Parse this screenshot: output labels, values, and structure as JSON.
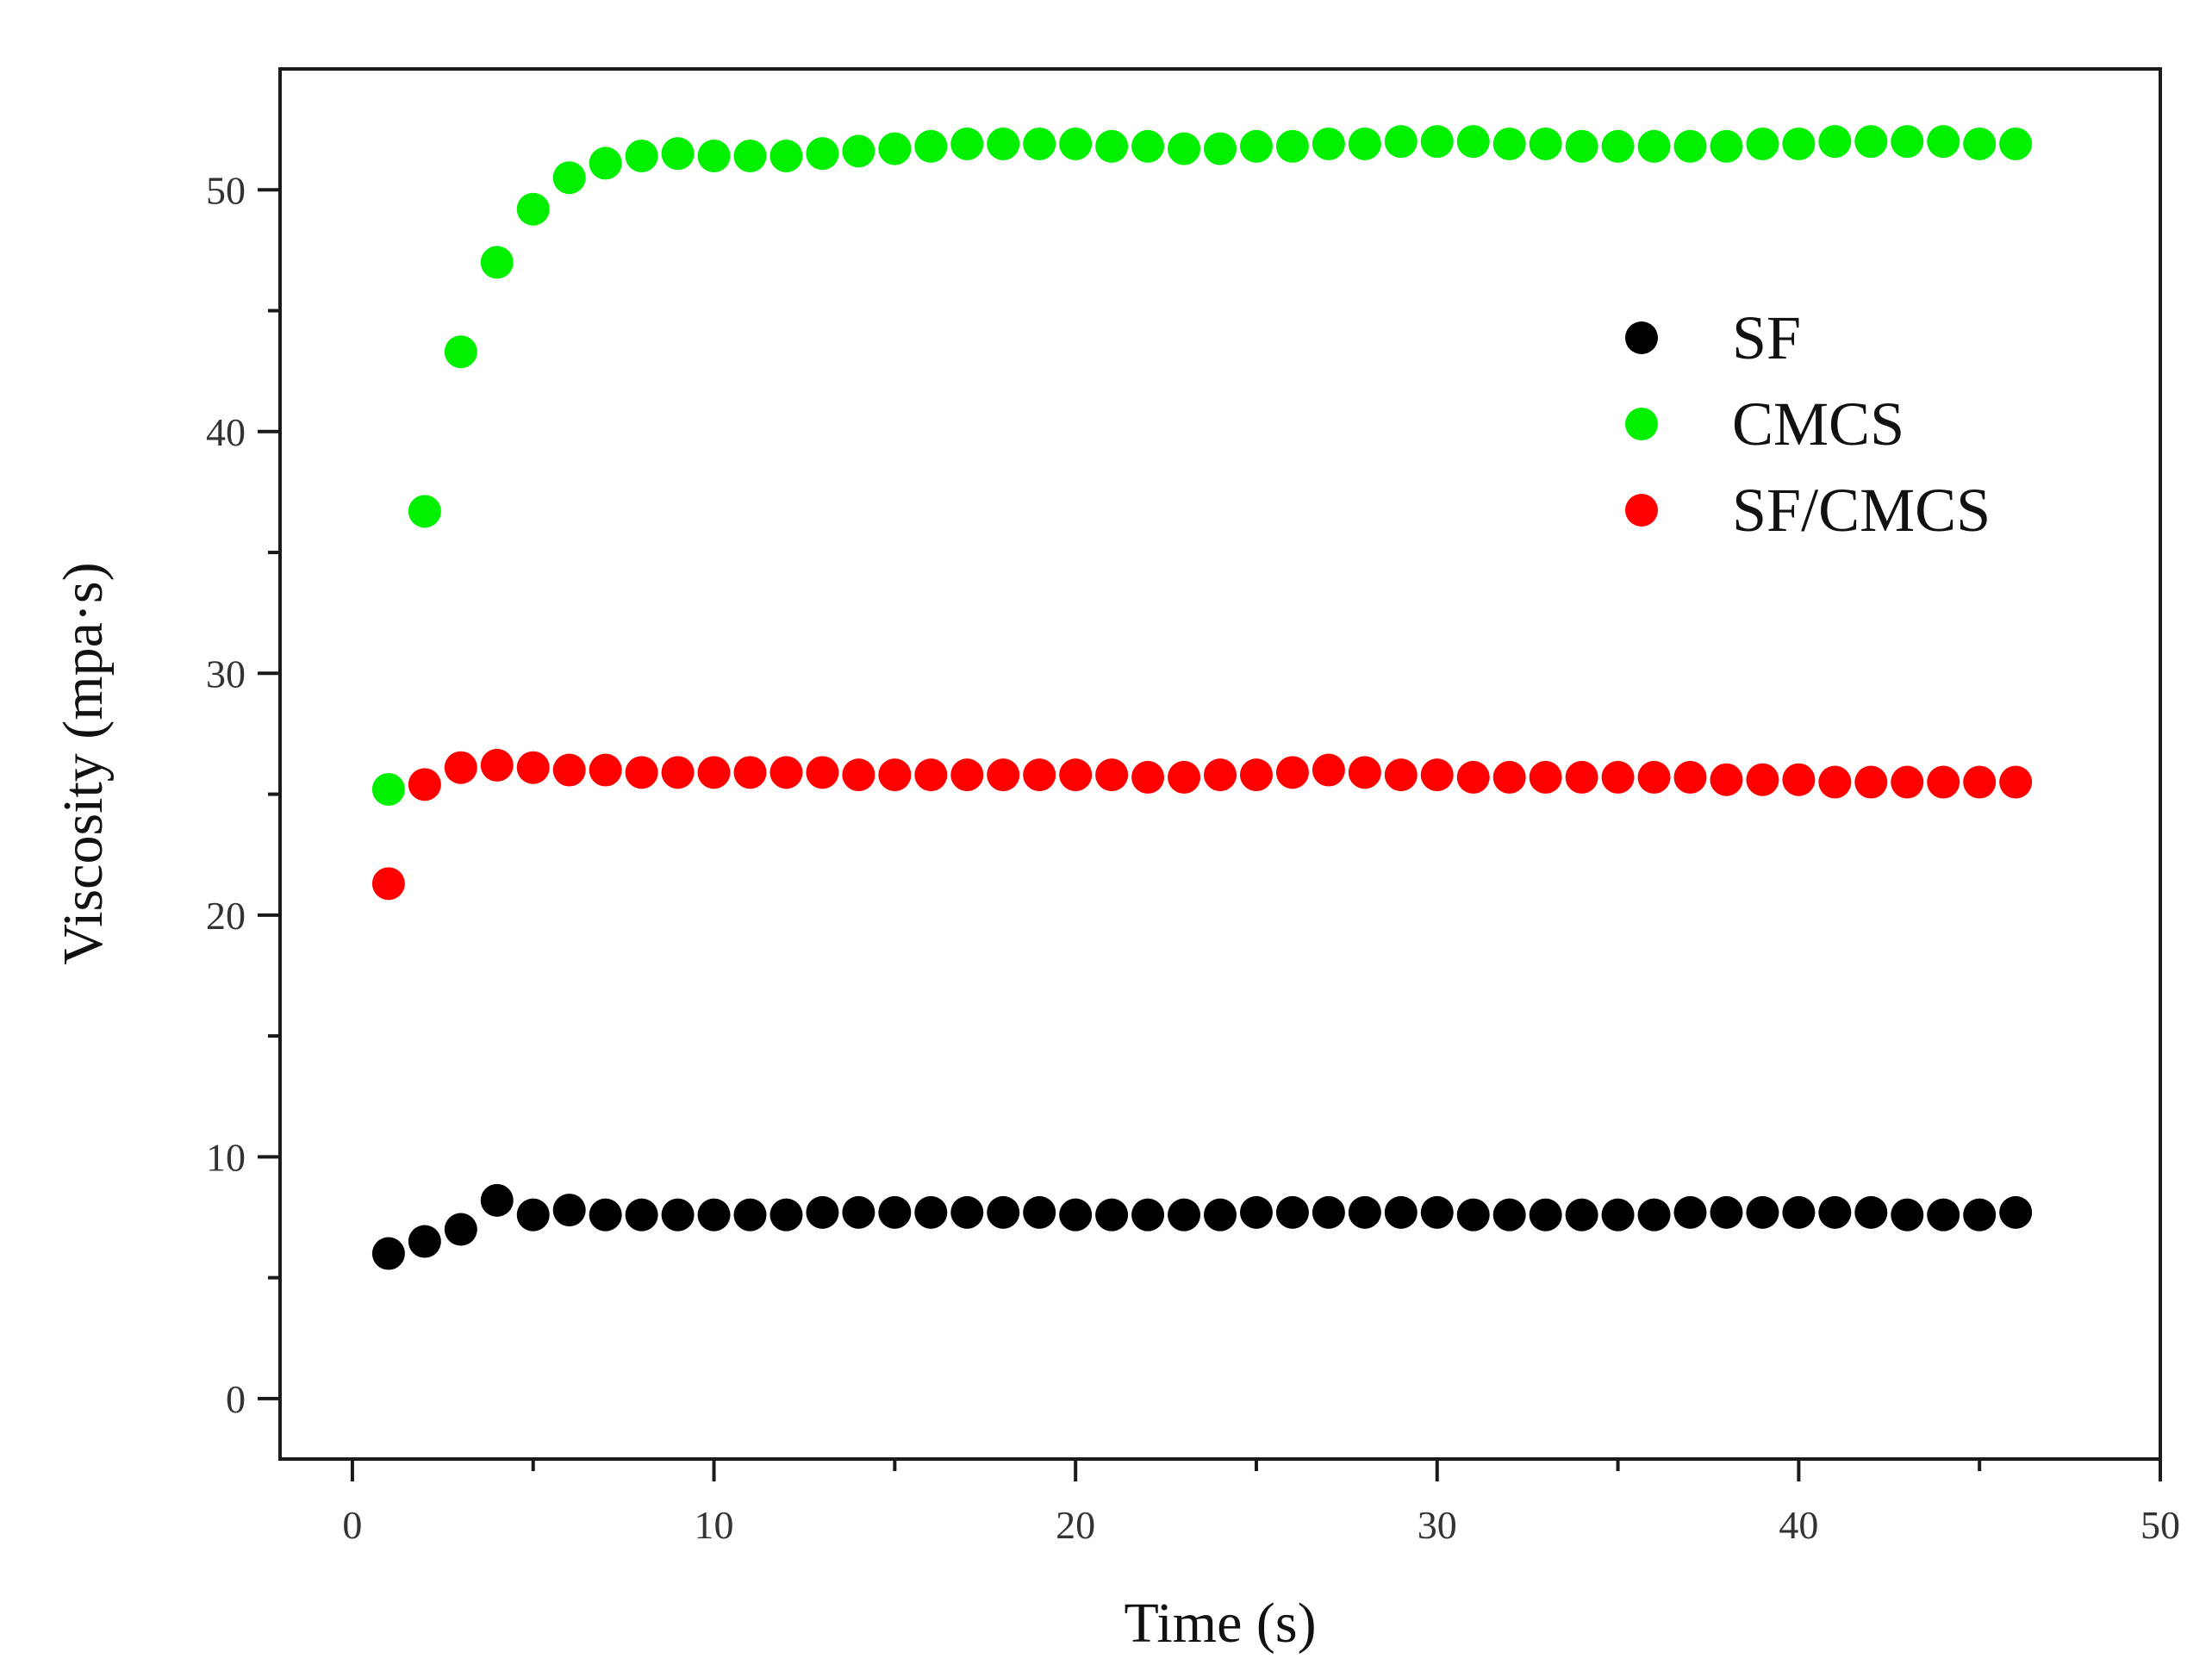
{
  "chart_data": {
    "type": "scatter",
    "title": "",
    "xlabel": "Time (s)",
    "ylabel": "Viscosity (mpa·s)",
    "xlim": [
      -2,
      50
    ],
    "ylim": [
      -2.5,
      55
    ],
    "xticks": [
      0,
      10,
      20,
      30,
      40,
      50
    ],
    "yticks": [
      0,
      10,
      20,
      30,
      40,
      50
    ],
    "grid": false,
    "legend_position": "upper-right",
    "x": [
      1,
      2,
      3,
      4,
      5,
      6,
      7,
      8,
      9,
      10,
      11,
      12,
      13,
      14,
      15,
      16,
      17,
      18,
      19,
      20,
      21,
      22,
      23,
      24,
      25,
      26,
      27,
      28,
      29,
      30,
      31,
      32,
      33,
      34,
      35,
      36,
      37,
      38,
      39,
      40,
      41,
      42,
      43,
      44,
      45,
      46
    ],
    "series": [
      {
        "name": "SF",
        "color": "#000000",
        "values": [
          6.0,
          6.5,
          7.0,
          8.2,
          7.6,
          7.8,
          7.6,
          7.6,
          7.6,
          7.6,
          7.6,
          7.6,
          7.7,
          7.7,
          7.7,
          7.7,
          7.7,
          7.7,
          7.7,
          7.6,
          7.6,
          7.6,
          7.6,
          7.6,
          7.7,
          7.7,
          7.7,
          7.7,
          7.7,
          7.7,
          7.6,
          7.6,
          7.6,
          7.6,
          7.6,
          7.6,
          7.7,
          7.7,
          7.7,
          7.7,
          7.7,
          7.7,
          7.6,
          7.6,
          7.6,
          7.7
        ]
      },
      {
        "name": "CMCS",
        "color": "#00f000",
        "values": [
          25.2,
          36.7,
          43.3,
          47.0,
          49.2,
          50.5,
          51.1,
          51.4,
          51.5,
          51.4,
          51.4,
          51.4,
          51.5,
          51.6,
          51.7,
          51.8,
          51.9,
          51.9,
          51.9,
          51.9,
          51.8,
          51.8,
          51.7,
          51.7,
          51.8,
          51.8,
          51.9,
          51.9,
          52.0,
          52.0,
          52.0,
          51.9,
          51.9,
          51.8,
          51.8,
          51.8,
          51.8,
          51.8,
          51.9,
          51.9,
          52.0,
          52.0,
          52.0,
          52.0,
          51.9,
          51.9
        ]
      },
      {
        "name": "SF/CMCS",
        "color": "#ff0000",
        "values": [
          21.3,
          25.4,
          26.1,
          26.2,
          26.1,
          26.0,
          26.0,
          25.9,
          25.9,
          25.9,
          25.9,
          25.9,
          25.9,
          25.8,
          25.8,
          25.8,
          25.8,
          25.8,
          25.8,
          25.8,
          25.8,
          25.7,
          25.7,
          25.8,
          25.8,
          25.9,
          26.0,
          25.9,
          25.8,
          25.8,
          25.7,
          25.7,
          25.7,
          25.7,
          25.7,
          25.7,
          25.7,
          25.6,
          25.6,
          25.6,
          25.5,
          25.5,
          25.5,
          25.5,
          25.5,
          25.5
        ]
      }
    ]
  }
}
